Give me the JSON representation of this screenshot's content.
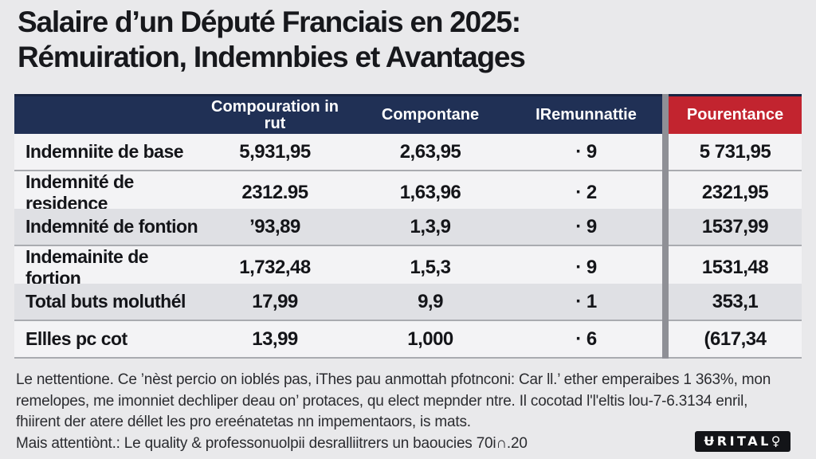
{
  "title": {
    "line1": "Salaire d’un Député Franciais en 2025:",
    "line2": "Rémuiration, Indemnbies et Avantages"
  },
  "colors": {
    "header_navy": "#203055",
    "header_red": "#c2242f",
    "row_light": "#f3f3f5",
    "row_dark": "#dfe0e4",
    "divider_gray": "#8f9096",
    "page_background": "#e9e9eb"
  },
  "table": {
    "headers": {
      "label": "",
      "compouration": "Compouration in rut",
      "compontane": "Compontane",
      "remunnattie": "IRemunnattie",
      "pourcentance": "Pourentance"
    },
    "rows": [
      {
        "label": "Indemniite de base",
        "compouration": "5,931,95",
        "compontane": "2,63,95",
        "remunnattie": "· 9",
        "pourcentance": "5 731,95"
      },
      {
        "label": "Indemnité de residence",
        "compouration": "2312.95",
        "compontane": "1,63,96",
        "remunnattie": "· 2",
        "pourcentance": "2321,95"
      },
      {
        "label": "Indemnité de fontion",
        "compouration": "’93,89",
        "compontane": "1,3,9",
        "remunnattie": "· 9",
        "pourcentance": "1537,99"
      },
      {
        "label": "Indemainite de fortion",
        "compouration": "1,732,48",
        "compontane": "1,5,3",
        "remunnattie": "· 9",
        "pourcentance": "1531,48"
      },
      {
        "label": "Total buts moluthél",
        "compouration": "17,99",
        "compontane": "9,9",
        "remunnattie": "· 1",
        "pourcentance": "353,1"
      },
      {
        "label": "Ellles pc cot",
        "compouration": "13,99",
        "compontane": "1,000",
        "remunnattie": "· 6",
        "pourcentance": "(617,34"
      }
    ]
  },
  "note": {
    "line1": "Le nettentione. Ce ’nèst percio on ioblés pas, iThes pau anmottah pfotnconi: Car ll.’ ether emperaibes 1 363%, mon",
    "line2": "remelopes, me imonniet dechliper deau on’ protaces, qu elect mepnder ntre. Il cocotad l'l'eltis lou-7-6.3134 enril,",
    "line3": "fhiirent der atere déllet les pro ereénatetas nn impementaors, is mats.",
    "line4": "Mais attentiònt.: Le quality & professonuolpii desralliitrers un baoucies 70i∩.20"
  },
  "logo": {
    "text": "ɄRITAL♀"
  }
}
